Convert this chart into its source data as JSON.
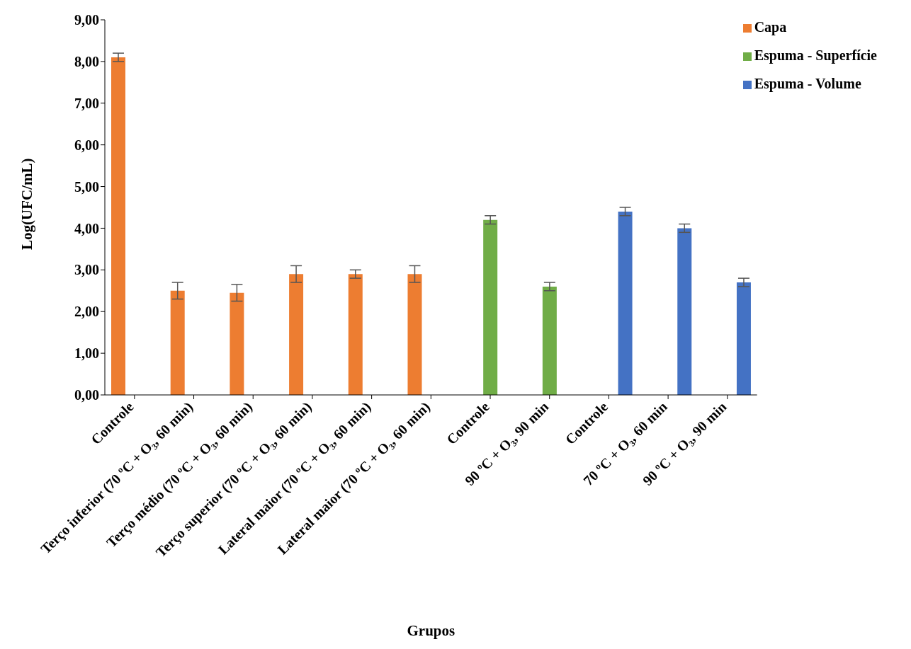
{
  "chart_data": {
    "type": "bar",
    "xlabel": "Grupos",
    "ylabel": "Log(UFC/mL)",
    "categories": [
      "Controle",
      "Terço inferior (70 ºC + O₃, 60 min)",
      "Terço médio (70 ºC + O₃, 60 min)",
      "Terço superior (70 ºC + O₃, 60 min)",
      "Lateral maior (70 ºC + O₃, 60 min)",
      "Lateral maior (70 ºC + O₃, 60 min)",
      "Controle",
      "90 ºC + O₃, 90 min",
      "Controle",
      "70 ºC + O₃, 60 min",
      "90 ºC + O₃, 90 min"
    ],
    "series": [
      {
        "name": "Capa",
        "color": "#ed7d31",
        "values": [
          8.1,
          2.5,
          2.45,
          2.9,
          2.9,
          2.9,
          null,
          null,
          null,
          null,
          null
        ],
        "errors": [
          0.1,
          0.2,
          0.2,
          0.2,
          0.1,
          0.2,
          null,
          null,
          null,
          null,
          null
        ]
      },
      {
        "name": "Espuma - Superfície",
        "color": "#70ad47",
        "values": [
          null,
          null,
          null,
          null,
          null,
          null,
          4.2,
          2.6,
          null,
          null,
          null
        ],
        "errors": [
          null,
          null,
          null,
          null,
          null,
          null,
          0.1,
          0.1,
          null,
          null,
          null
        ]
      },
      {
        "name": "Espuma - Volume",
        "color": "#4472c4",
        "values": [
          null,
          null,
          null,
          null,
          null,
          null,
          null,
          null,
          4.4,
          4.0,
          2.7
        ],
        "errors": [
          null,
          null,
          null,
          null,
          null,
          null,
          null,
          null,
          0.1,
          0.1,
          0.1
        ]
      }
    ],
    "ylim": [
      0,
      9
    ],
    "yticks": [
      {
        "value": 0,
        "label": "0,00"
      },
      {
        "value": 1,
        "label": "1,00"
      },
      {
        "value": 2,
        "label": "2,00"
      },
      {
        "value": 3,
        "label": "3,00"
      },
      {
        "value": 4,
        "label": "4,00"
      },
      {
        "value": 5,
        "label": "5,00"
      },
      {
        "value": 6,
        "label": "6,00"
      },
      {
        "value": 7,
        "label": "7,00"
      },
      {
        "value": 8,
        "label": "8,00"
      },
      {
        "value": 9,
        "label": "9,00"
      }
    ],
    "grid": false,
    "legend": "top right"
  }
}
